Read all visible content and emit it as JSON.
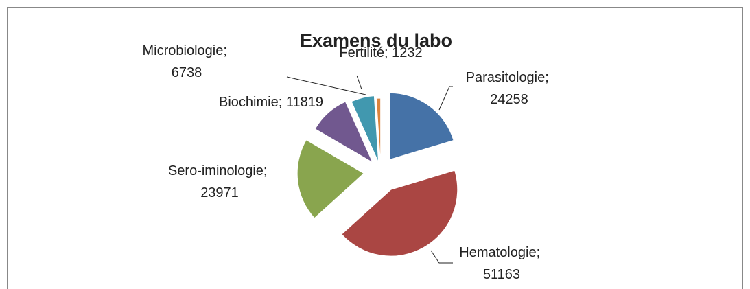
{
  "chart_data": {
    "type": "pie",
    "title": "Examens du labo",
    "categories": [
      "Parasitologie",
      "Hematologie",
      "Sero-iminologie",
      "Biochimie",
      "Microbiologie",
      "Fertilité"
    ],
    "values": [
      24258,
      51163,
      23971,
      11819,
      6738,
      1232
    ],
    "colors": [
      "#4572a7",
      "#aa4643",
      "#89a54e",
      "#71588f",
      "#4198af",
      "#db843d"
    ],
    "label_separator": "; "
  }
}
